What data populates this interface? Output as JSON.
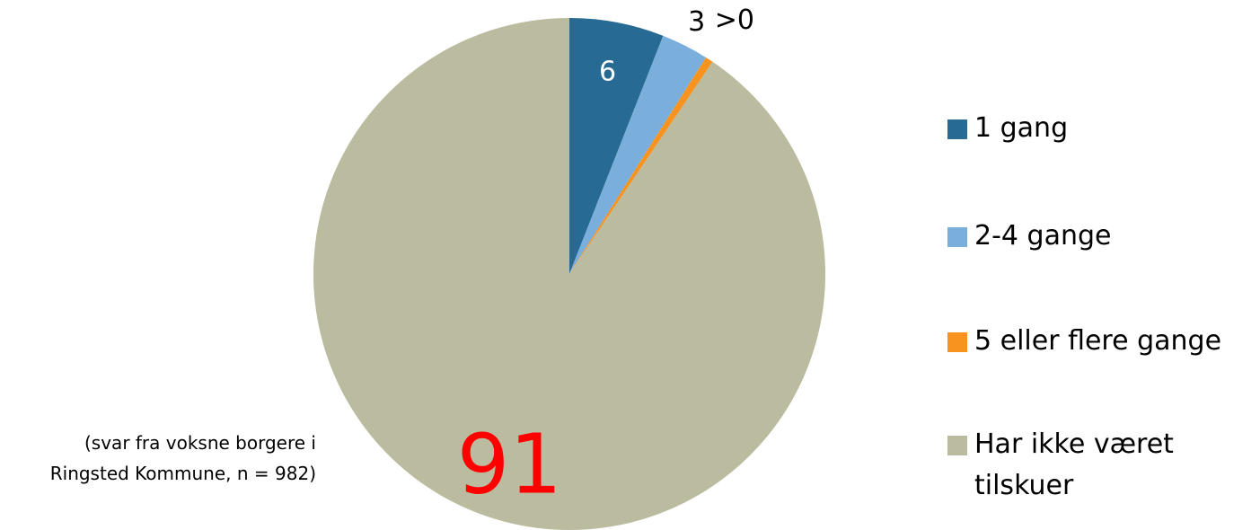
{
  "chart_data": {
    "type": "pie",
    "categories": [
      "1 gang",
      "2-4 gange",
      "5 eller flere gange",
      "Har ikke været tilskuer"
    ],
    "values": [
      6,
      3,
      0.5,
      91
    ],
    "value_labels": [
      "6",
      "3",
      ">0",
      "91"
    ],
    "colors": [
      "#276a93",
      "#7aaedb",
      "#f7931e",
      "#bbbba0"
    ],
    "label_colors": [
      "#ffffff",
      "#000000",
      "#000000",
      "#ff0000"
    ],
    "legend": "right",
    "annotation": "(svar fra voksne borgere i Ringsted Kommune, n = 982)"
  }
}
